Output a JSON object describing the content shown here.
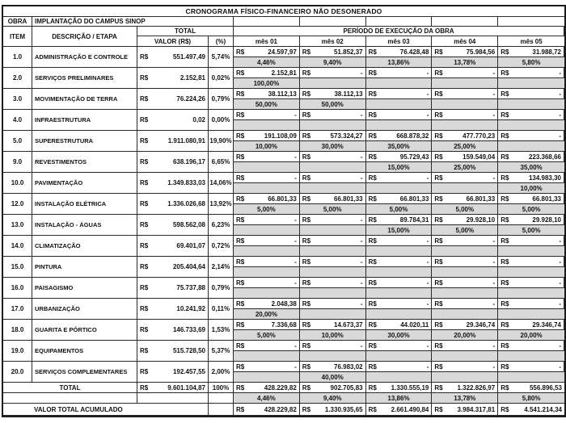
{
  "title": "CRONOGRAMA FÍSICO-FINANCEIRO NÃO DESONERADO",
  "obra": {
    "label": "OBRA",
    "value": "IMPLANTAÇÃO DO CAMPUS SINOP"
  },
  "headers": {
    "item": "ITEM",
    "descricao": "DESCRIÇÃO / ETAPA",
    "total": "TOTAL",
    "valor": "VALOR (R$)",
    "pct": "(%)",
    "periodo": "PERÍODO DE EXECUÇÃO DA OBRA",
    "months": [
      "mês 01",
      "mês 02",
      "mês 03",
      "mês 04",
      "mês 05"
    ]
  },
  "currency": "R$",
  "rows": [
    {
      "item": "1.0",
      "desc": "ADMINISTRAÇÃO E CONTROLE",
      "valor": "551.497,49",
      "pct": "5,74%",
      "months": [
        {
          "v": "24.597,97",
          "p": "4,46%"
        },
        {
          "v": "51.852,37",
          "p": "9,40%"
        },
        {
          "v": "76.428,48",
          "p": "13,86%"
        },
        {
          "v": "75.984,56",
          "p": "13,78%"
        },
        {
          "v": "31.988,72",
          "p": "5,80%"
        }
      ]
    },
    {
      "item": "2.0",
      "desc": "SERVIÇOS PRELIMINARES",
      "valor": "2.152,81",
      "pct": "0,02%",
      "months": [
        {
          "v": "2.152,81",
          "p": "100,00%"
        },
        {
          "v": "-",
          "p": ""
        },
        {
          "v": "-",
          "p": ""
        },
        {
          "v": "-",
          "p": ""
        },
        {
          "v": "-",
          "p": ""
        }
      ]
    },
    {
      "item": "3.0",
      "desc": "MOVIMENTAÇÃO DE TERRA",
      "valor": "76.224,26",
      "pct": "0,79%",
      "months": [
        {
          "v": "38.112,13",
          "p": "50,00%"
        },
        {
          "v": "38.112,13",
          "p": "50,00%"
        },
        {
          "v": "-",
          "p": ""
        },
        {
          "v": "-",
          "p": ""
        },
        {
          "v": "-",
          "p": ""
        }
      ]
    },
    {
      "item": "4.0",
      "desc": "INFRAESTRUTURA",
      "valor": "0,02",
      "pct": "0,00%",
      "months": [
        {
          "v": "-",
          "p": ""
        },
        {
          "v": "-",
          "p": ""
        },
        {
          "v": "-",
          "p": ""
        },
        {
          "v": "-",
          "p": ""
        },
        {
          "v": "-",
          "p": ""
        }
      ]
    },
    {
      "item": "5.0",
      "desc": "SUPERESTRUTURA",
      "valor": "1.911.080,91",
      "pct": "19,90%",
      "months": [
        {
          "v": "191.108,09",
          "p": "10,00%"
        },
        {
          "v": "573.324,27",
          "p": "30,00%"
        },
        {
          "v": "668.878,32",
          "p": "35,00%"
        },
        {
          "v": "477.770,23",
          "p": "25,00%"
        },
        {
          "v": "-",
          "p": ""
        }
      ]
    },
    {
      "item": "9.0",
      "desc": "REVESTIMENTOS",
      "valor": "638.196,17",
      "pct": "6,65%",
      "months": [
        {
          "v": "-",
          "p": ""
        },
        {
          "v": "-",
          "p": ""
        },
        {
          "v": "95.729,43",
          "p": "15,00%"
        },
        {
          "v": "159.549,04",
          "p": "25,00%"
        },
        {
          "v": "223.368,66",
          "p": "35,00%"
        }
      ]
    },
    {
      "item": "10.0",
      "desc": "PAVIMENTAÇÃO",
      "valor": "1.349.833,03",
      "pct": "14,06%",
      "months": [
        {
          "v": "-",
          "p": ""
        },
        {
          "v": "-",
          "p": ""
        },
        {
          "v": "-",
          "p": ""
        },
        {
          "v": "-",
          "p": ""
        },
        {
          "v": "134.983,30",
          "p": "10,00%"
        }
      ]
    },
    {
      "item": "12.0",
      "desc": "INSTALAÇÃO ELÉTRICA",
      "valor": "1.336.026,68",
      "pct": "13,92%",
      "months": [
        {
          "v": "66.801,33",
          "p": "5,00%"
        },
        {
          "v": "66.801,33",
          "p": "5,00%"
        },
        {
          "v": "66.801,33",
          "p": "5,00%"
        },
        {
          "v": "66.801,33",
          "p": "5,00%"
        },
        {
          "v": "66.801,33",
          "p": "5,00%"
        }
      ]
    },
    {
      "item": "13.0",
      "desc": "INSTALAÇÃO - ÁGUAS",
      "valor": "598.562,08",
      "pct": "6,23%",
      "months": [
        {
          "v": "-",
          "p": ""
        },
        {
          "v": "-",
          "p": ""
        },
        {
          "v": "89.784,31",
          "p": "15,00%"
        },
        {
          "v": "29.928,10",
          "p": "5,00%"
        },
        {
          "v": "29.928,10",
          "p": "5,00%"
        }
      ]
    },
    {
      "item": "14.0",
      "desc": "CLIMATIZAÇÃO",
      "valor": "69.401,07",
      "pct": "0,72%",
      "months": [
        {
          "v": "-",
          "p": ""
        },
        {
          "v": "-",
          "p": ""
        },
        {
          "v": "-",
          "p": ""
        },
        {
          "v": "-",
          "p": ""
        },
        {
          "v": "-",
          "p": ""
        }
      ]
    },
    {
      "item": "15.0",
      "desc": "PINTURA",
      "valor": "205.404,64",
      "pct": "2,14%",
      "months": [
        {
          "v": "-",
          "p": ""
        },
        {
          "v": "-",
          "p": ""
        },
        {
          "v": "-",
          "p": ""
        },
        {
          "v": "-",
          "p": ""
        },
        {
          "v": "-",
          "p": ""
        }
      ]
    },
    {
      "item": "16.0",
      "desc": "PAISAGISMO",
      "valor": "75.737,88",
      "pct": "0,79%",
      "months": [
        {
          "v": "-",
          "p": ""
        },
        {
          "v": "-",
          "p": ""
        },
        {
          "v": "-",
          "p": ""
        },
        {
          "v": "-",
          "p": ""
        },
        {
          "v": "-",
          "p": ""
        }
      ]
    },
    {
      "item": "17.0",
      "desc": "URBANIZAÇÃO",
      "valor": "10.241,92",
      "pct": "0,11%",
      "months": [
        {
          "v": "2.048,38",
          "p": "20,00%"
        },
        {
          "v": "-",
          "p": ""
        },
        {
          "v": "-",
          "p": ""
        },
        {
          "v": "-",
          "p": ""
        },
        {
          "v": "-",
          "p": ""
        }
      ]
    },
    {
      "item": "18.0",
      "desc": "GUARITA E PÓRTICO",
      "valor": "146.733,69",
      "pct": "1,53%",
      "months": [
        {
          "v": "7.336,68",
          "p": "5,00%"
        },
        {
          "v": "14.673,37",
          "p": "10,00%"
        },
        {
          "v": "44.020,11",
          "p": "30,00%"
        },
        {
          "v": "29.346,74",
          "p": "20,00%"
        },
        {
          "v": "29.346,74",
          "p": "20,00%"
        }
      ]
    },
    {
      "item": "19.0",
      "desc": "EQUIPAMENTOS",
      "valor": "515.728,50",
      "pct": "5,37%",
      "months": [
        {
          "v": "-",
          "p": ""
        },
        {
          "v": "-",
          "p": ""
        },
        {
          "v": "-",
          "p": ""
        },
        {
          "v": "-",
          "p": ""
        },
        {
          "v": "-",
          "p": ""
        }
      ]
    },
    {
      "item": "20.0",
      "desc": "SERVIÇOS COMPLEMENTARES",
      "valor": "192.457,55",
      "pct": "2,00%",
      "months": [
        {
          "v": "-",
          "p": ""
        },
        {
          "v": "76.983,02",
          "p": "40,00%"
        },
        {
          "v": "-",
          "p": ""
        },
        {
          "v": "-",
          "p": ""
        },
        {
          "v": "-",
          "p": ""
        }
      ]
    }
  ],
  "total_row": {
    "label": "TOTAL",
    "valor": "9.601.104,87",
    "pct": "100%",
    "month_values": [
      "428.229,82",
      "902.705,83",
      "1.330.555,19",
      "1.322.826,97",
      "556.896,53"
    ],
    "month_pcts": [
      "4,46%",
      "9,40%",
      "13,86%",
      "13,78%",
      "5,80%"
    ]
  },
  "acumulado_row": {
    "label": "VALOR TOTAL ACUMULADO",
    "month_values": [
      "428.229,82",
      "1.330.935,65",
      "2.661.490,84",
      "3.984.317,81",
      "4.541.214,34"
    ]
  }
}
